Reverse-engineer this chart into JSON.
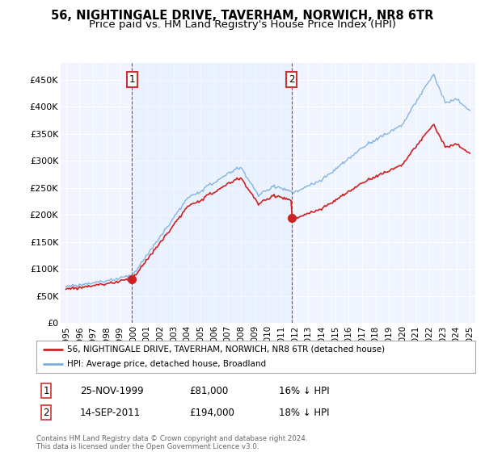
{
  "title": "56, NIGHTINGALE DRIVE, TAVERHAM, NORWICH, NR8 6TR",
  "subtitle": "Price paid vs. HM Land Registry's House Price Index (HPI)",
  "ytick_labels": [
    "£0",
    "£50K",
    "£100K",
    "£150K",
    "£200K",
    "£250K",
    "£300K",
    "£350K",
    "£400K",
    "£450K"
  ],
  "yticks": [
    0,
    50000,
    100000,
    150000,
    200000,
    250000,
    300000,
    350000,
    400000,
    450000
  ],
  "hpi_color": "#7aaddb",
  "price_color": "#cc2222",
  "shade_color": "#ddeeff",
  "plot_bg": "#f0f4ff",
  "sale1_date": 1999.9,
  "sale1_price": 81000,
  "sale2_date": 2011.75,
  "sale2_price": 194000,
  "legend_label1": "56, NIGHTINGALE DRIVE, TAVERHAM, NORWICH, NR8 6TR (detached house)",
  "legend_label2": "HPI: Average price, detached house, Broadland",
  "footer": "Contains HM Land Registry data © Crown copyright and database right 2024.\nThis data is licensed under the Open Government Licence v3.0.",
  "title_fontsize": 10.5,
  "subtitle_fontsize": 9.5,
  "xmin": 1995,
  "xmax": 2025
}
